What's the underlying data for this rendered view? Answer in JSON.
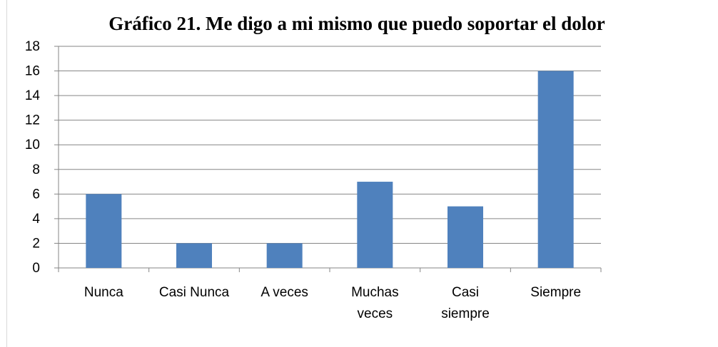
{
  "chart_data": {
    "type": "bar",
    "title": "Gráfico 21. Me digo a mi mismo que puedo soportar el dolor",
    "categories": [
      "Nunca",
      "Casi Nunca",
      "A veces",
      "Muchas veces",
      "Casi siempre",
      "Siempre"
    ],
    "values": [
      6,
      2,
      2,
      7,
      5,
      16
    ],
    "color": "#4f81bd",
    "ylim": [
      0,
      18
    ],
    "yticks": [
      0,
      2,
      4,
      6,
      8,
      10,
      12,
      14,
      16,
      18
    ],
    "grid": true
  }
}
